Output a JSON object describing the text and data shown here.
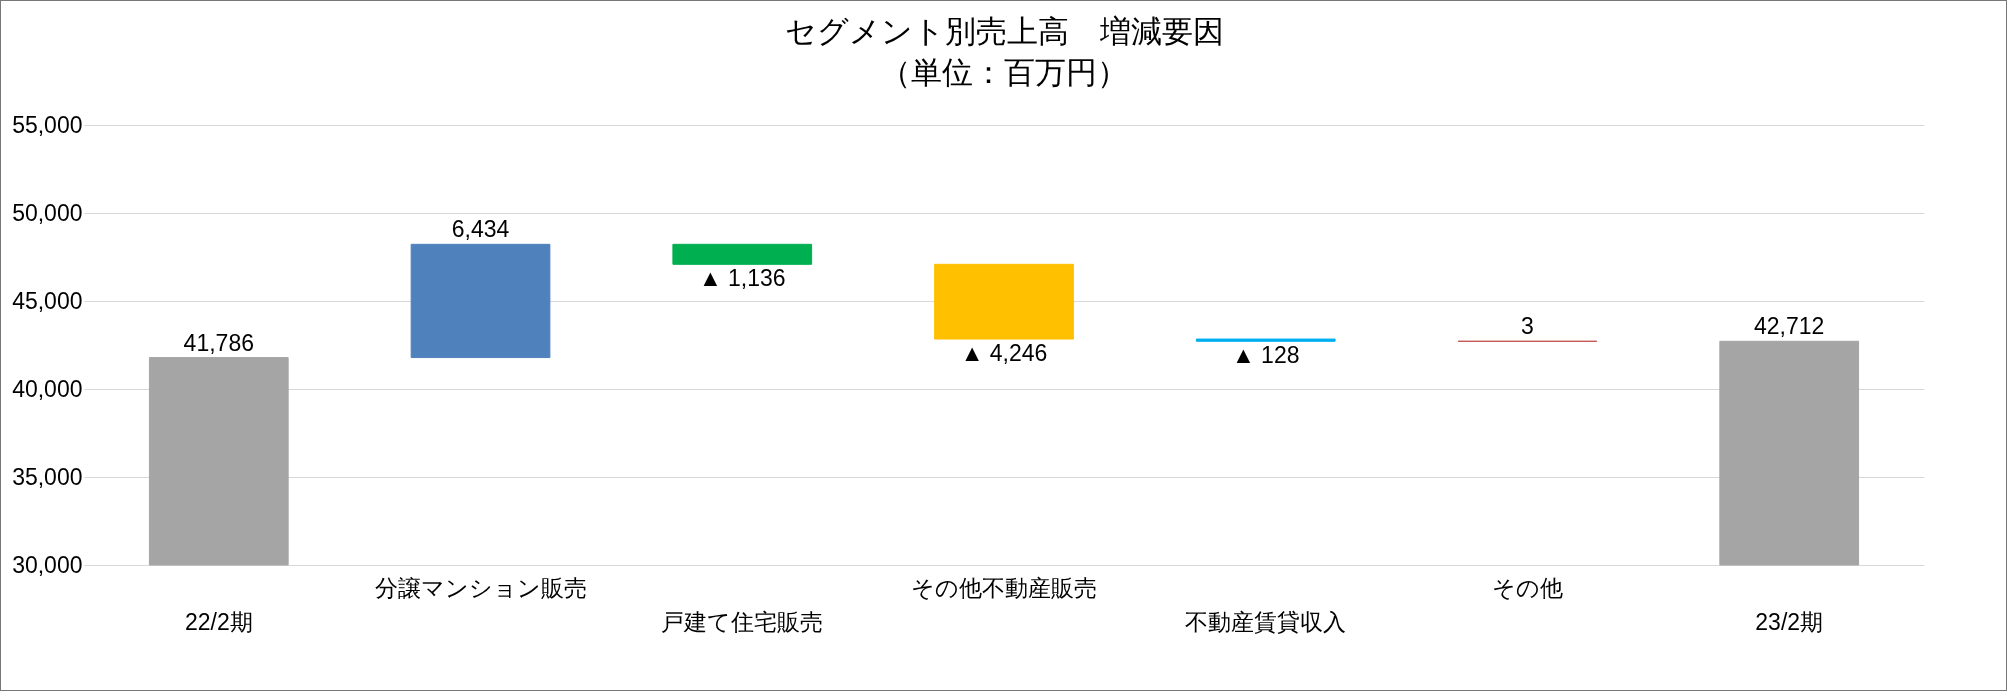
{
  "chart_data": {
    "type": "bar",
    "title": "セグメント別売上高　増減要因",
    "subtitle": "（単位：百万円）",
    "categories": [
      "22/2期",
      "分譲マンション販売",
      "戸建て住宅販売",
      "その他不動産販売",
      "不動産賃貸収入",
      "その他",
      "23/2期"
    ],
    "values": [
      41786,
      6434,
      -1136,
      -4246,
      -128,
      3,
      42712
    ],
    "base": [
      null,
      41786,
      48220,
      47084,
      42838,
      42710,
      null
    ],
    "colors": [
      "#a5a5a5",
      "#4f81bd",
      "#00b050",
      "#ffc000",
      "#00b0f0",
      "#c0504d",
      "#a5a5a5"
    ],
    "value_labels": [
      "41,786",
      "6,434",
      "▲ 1,136",
      "▲ 4,246",
      "▲ 128",
      "3",
      "42,712"
    ],
    "ylim": [
      30000,
      55000
    ],
    "yticks": [
      {
        "value": 30000,
        "label": "30,000"
      },
      {
        "value": 35000,
        "label": "35,000"
      },
      {
        "value": 40000,
        "label": "40,000"
      },
      {
        "value": 45000,
        "label": "45,000"
      },
      {
        "value": 50000,
        "label": "50,000"
      },
      {
        "value": 55000,
        "label": "55,000"
      }
    ],
    "grid": "y",
    "legend": false
  }
}
